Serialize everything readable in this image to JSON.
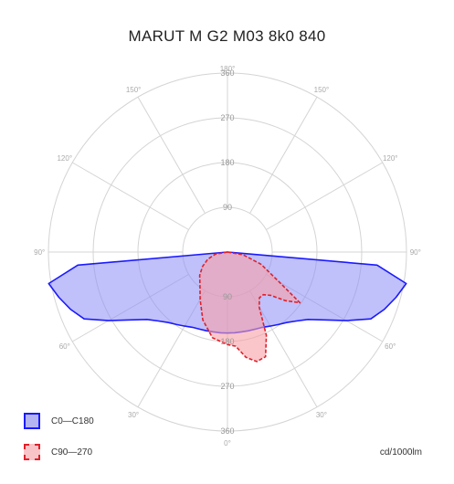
{
  "title": "MARUT M G2 M03 8k0 840",
  "unit": "cd/1000lm",
  "colors": {
    "c0_stroke": "#1a1aff",
    "c0_fill": "#8c8cf5",
    "c90_stroke": "#e0202a",
    "c90_fill": "#f7a0a6",
    "grid": "#d4d4d4"
  },
  "chart_data": {
    "type": "polar",
    "title": "MARUT M G2 M03 8k0 840",
    "unit": "cd/1000lm",
    "r_max": 360,
    "ring_labels": [
      "90",
      "180",
      "270",
      "360"
    ],
    "angle_labels": [
      "180°",
      "150°",
      "120°",
      "90°",
      "60°",
      "30°",
      "0°",
      "30°",
      "60°",
      "90°",
      "120°",
      "150°"
    ],
    "legend_position": "bottom-left",
    "series": [
      {
        "name": "C0—C180",
        "angles": [
          -90,
          -85,
          -80,
          -75,
          -70,
          -65,
          -60,
          -55,
          -50,
          -45,
          -40,
          -35,
          -30,
          -25,
          -20,
          -15,
          -10,
          -5,
          0,
          5,
          10,
          15,
          20,
          25,
          30,
          35,
          40,
          45,
          50,
          55,
          60,
          65,
          70,
          75,
          80,
          85,
          90
        ],
        "values": [
          0,
          302,
          365,
          351,
          336,
          318,
          276,
          238,
          211,
          196,
          185,
          178,
          172,
          167,
          165,
          164,
          163,
          163,
          163,
          163,
          163,
          164,
          165,
          167,
          172,
          178,
          185,
          196,
          211,
          238,
          276,
          318,
          336,
          351,
          365,
          302,
          0
        ]
      },
      {
        "name": "C90—270",
        "angles": [
          -90,
          -80,
          -70,
          -60,
          -50,
          -40,
          -30,
          -20,
          -10,
          0,
          5,
          10,
          15,
          20,
          25,
          30,
          35,
          40,
          45,
          50,
          55,
          60,
          70,
          80,
          90
        ],
        "values": [
          0,
          25,
          42,
          58,
          73,
          86,
          110,
          145,
          175,
          186,
          190,
          215,
          228,
          224,
          185,
          128,
          112,
          112,
          123,
          152,
          178,
          120,
          72,
          32,
          0
        ]
      }
    ]
  }
}
